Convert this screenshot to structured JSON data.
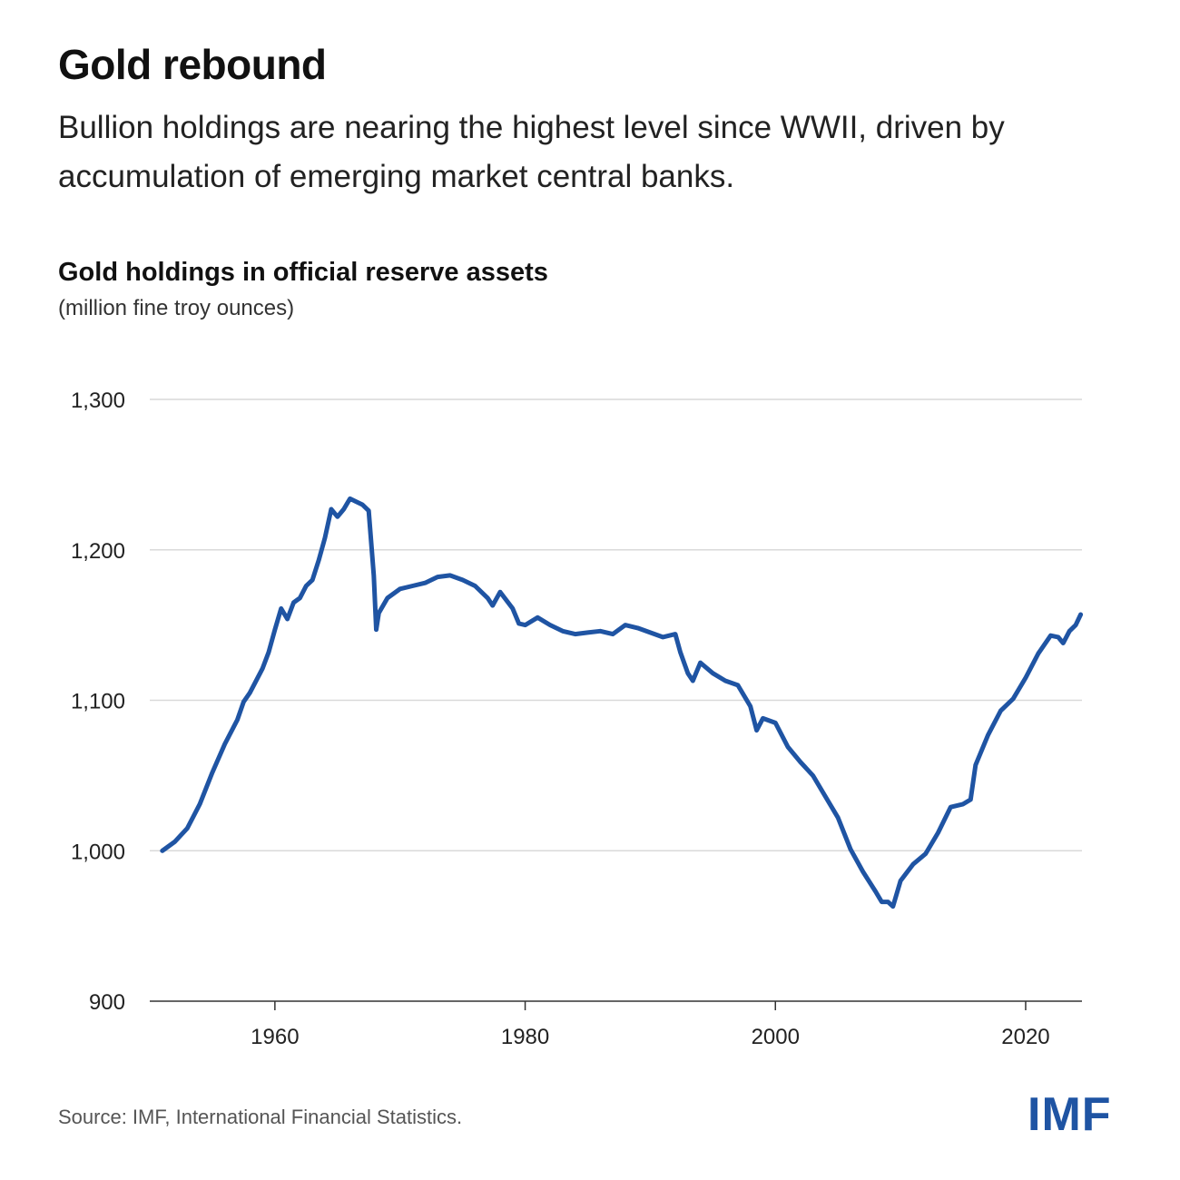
{
  "headline": "Gold rebound",
  "subheadline": "Bullion holdings are nearing the highest level since WWII, driven by accumulation of emerging market central banks.",
  "source": "Source: IMF, International Financial Statistics.",
  "logo": "IMF",
  "colors": {
    "line": "#1f54a3",
    "grid": "#d9d9d9",
    "axis": "#333333",
    "logo": "#1f54a3"
  },
  "chart_data": {
    "type": "line",
    "title": "Gold holdings in official reserve assets",
    "ylabel": "(million fine troy ounces)",
    "xlabel": "",
    "xlim": [
      1950,
      2024.5
    ],
    "ylim": [
      900,
      1300
    ],
    "y_ticks": [
      900,
      1000,
      1100,
      1200,
      1300
    ],
    "y_tick_labels": [
      "900",
      "1,000",
      "1,100",
      "1,200",
      "1,300"
    ],
    "x_ticks": [
      1960,
      1980,
      2000,
      2020
    ],
    "x_tick_labels": [
      "1960",
      "1980",
      "2000",
      "2020"
    ],
    "grid": true,
    "series": [
      {
        "name": "Gold holdings",
        "x": [
          1951,
          1952,
          1953,
          1954,
          1955,
          1956,
          1957,
          1957.5,
          1958,
          1959,
          1959.5,
          1960,
          1960.5,
          1961,
          1961.5,
          1962,
          1962.5,
          1963,
          1963.5,
          1964,
          1964.5,
          1965,
          1965.5,
          1966,
          1966.5,
          1967,
          1967.5,
          1967.9,
          1968.1,
          1968.3,
          1969,
          1970,
          1971,
          1972,
          1973,
          1974,
          1975,
          1976,
          1977,
          1977.4,
          1978,
          1979,
          1979.5,
          1980,
          1981,
          1982,
          1983,
          1984,
          1985,
          1986,
          1987,
          1988,
          1989,
          1990,
          1991,
          1992,
          1992.4,
          1993,
          1993.4,
          1994,
          1995,
          1996,
          1997,
          1998,
          1998.5,
          1999,
          2000,
          2001,
          2002,
          2003,
          2004,
          2005,
          2006,
          2007,
          2008,
          2008.5,
          2009,
          2009.4,
          2010,
          2011,
          2012,
          2013,
          2014,
          2015,
          2015.6,
          2016,
          2017,
          2018,
          2019,
          2020,
          2021,
          2022,
          2022.6,
          2023,
          2023.5,
          2024,
          2024.4
        ],
        "values": [
          1000,
          1006,
          1015,
          1031,
          1052,
          1071,
          1087,
          1099,
          1105,
          1121,
          1132,
          1147,
          1161,
          1154,
          1165,
          1168,
          1176,
          1180,
          1193,
          1208,
          1227,
          1222,
          1227,
          1234,
          1232,
          1230,
          1226,
          1183,
          1147,
          1158,
          1168,
          1174,
          1176,
          1178,
          1182,
          1183,
          1180,
          1176,
          1168,
          1163,
          1172,
          1161,
          1151,
          1150,
          1155,
          1150,
          1146,
          1144,
          1145,
          1146,
          1144,
          1150,
          1148,
          1145,
          1142,
          1144,
          1132,
          1118,
          1113,
          1125,
          1118,
          1113,
          1110,
          1096,
          1080,
          1088,
          1085,
          1069,
          1059,
          1050,
          1036,
          1022,
          1001,
          986,
          973,
          966,
          966,
          963,
          980,
          991,
          998,
          1012,
          1029,
          1031,
          1034,
          1057,
          1077,
          1093,
          1101,
          1115,
          1131,
          1143,
          1142,
          1138,
          1146,
          1150,
          1157
        ]
      }
    ]
  }
}
